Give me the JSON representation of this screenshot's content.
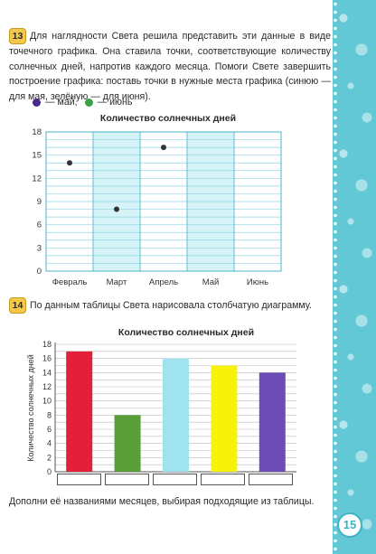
{
  "page_number": "15",
  "task13": {
    "number": "13",
    "text": "Для наглядности Света решила представить эти данные в виде точечного графика. Она ставила точки, соответствующие количеству солнечных дней, напротив каждого месяца. Помоги Свете завершить построение графика: поставь точки в нужные места графика (синюю — для мая, зелёную — для июня).",
    "legend_may": "— май,",
    "legend_june": "— июнь",
    "may_color": "#4a2a8a",
    "june_color": "#3aa34a"
  },
  "task14": {
    "number": "14",
    "text": "По данным таблицы Света нарисовала столбчатую диаграмму.",
    "footer_text": "Дополни её названиями месяцев, выбирая подходящие из таблицы."
  },
  "chart_data": [
    {
      "type": "scatter",
      "title": "Количество солнечных дней",
      "categories": [
        "Февраль",
        "Март",
        "Апрель",
        "Май",
        "Июнь"
      ],
      "ylim": [
        0,
        18
      ],
      "yticks": [
        0,
        3,
        6,
        9,
        12,
        15,
        18
      ],
      "points": [
        {
          "category": "Февраль",
          "value": 14
        },
        {
          "category": "Март",
          "value": 8
        },
        {
          "category": "Апрель",
          "value": 16
        }
      ],
      "point_color": "#333333",
      "grid": true
    },
    {
      "type": "bar",
      "title": "Количество солнечных дней",
      "ylabel": "Количество солнечных дней",
      "ylim": [
        0,
        18
      ],
      "yticks": [
        0,
        2,
        4,
        6,
        8,
        10,
        12,
        14,
        16,
        18
      ],
      "values": [
        17,
        8,
        16,
        15,
        14
      ],
      "colors": [
        "#e2203a",
        "#5a9e3a",
        "#9fe3ee",
        "#f7f20a",
        "#6c4db8"
      ],
      "grid": true
    }
  ]
}
